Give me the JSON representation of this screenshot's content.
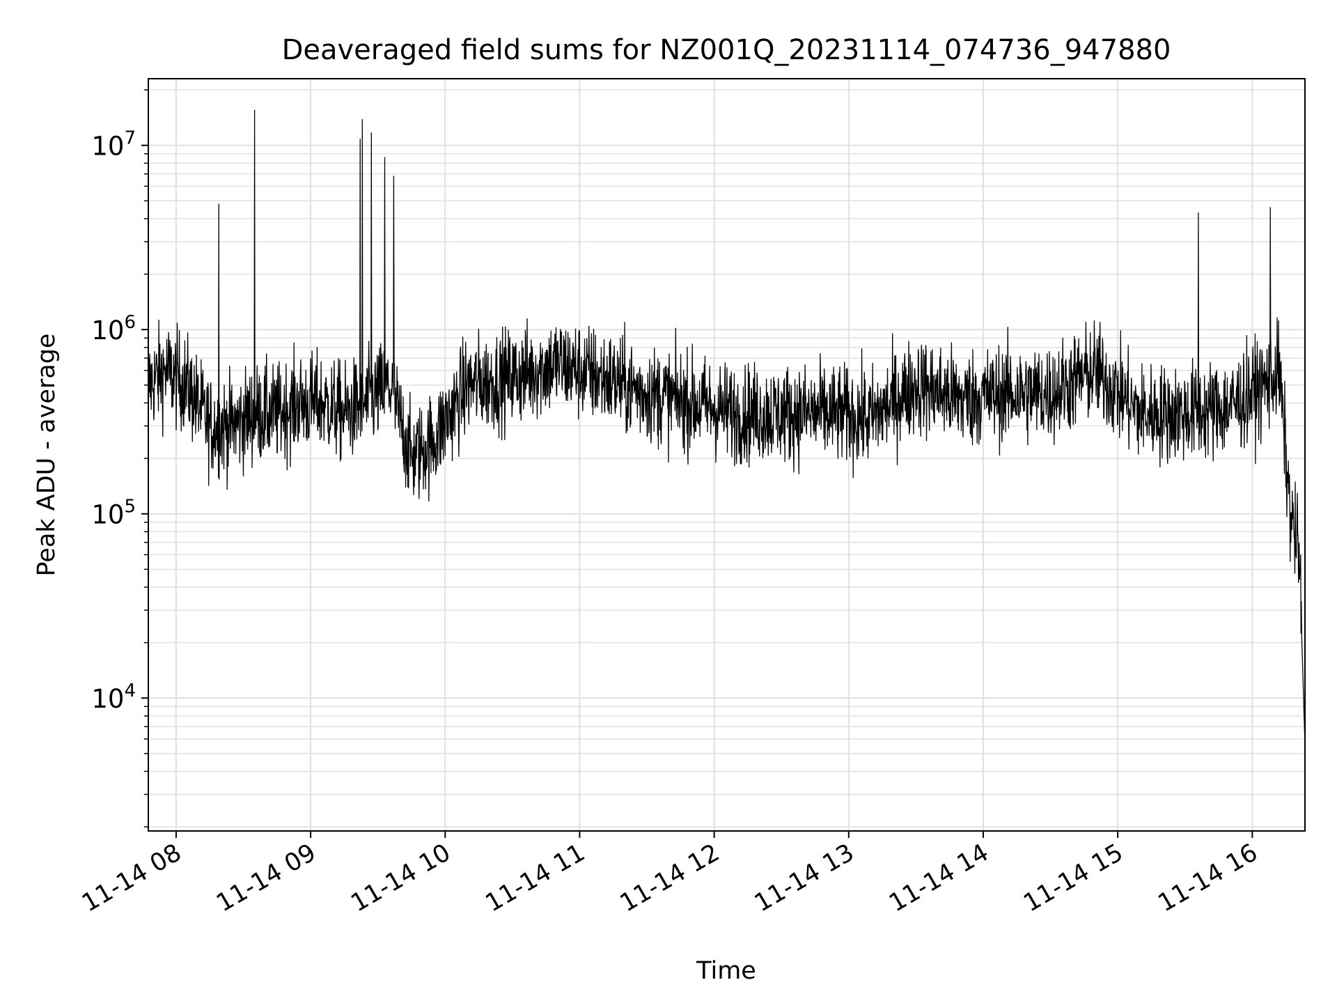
{
  "chart_data": {
    "type": "line",
    "title": "Deaveraged field sums for NZ001Q_20231114_074736_947880",
    "xlabel": "Time",
    "ylabel": "Peak ADU - average",
    "y_scale": "log",
    "ylim": [
      1900,
      23000000
    ],
    "xlim": [
      "2023-11-14 07:47:36",
      "2023-11-14 16:23:30"
    ],
    "grid": true,
    "line_color": "#000000",
    "grid_color": "#e0e0e0",
    "x_ticks": [
      {
        "value": "2023-11-14 08:00",
        "label": "11-14 08"
      },
      {
        "value": "2023-11-14 09:00",
        "label": "11-14 09"
      },
      {
        "value": "2023-11-14 10:00",
        "label": "11-14 10"
      },
      {
        "value": "2023-11-14 11:00",
        "label": "11-14 11"
      },
      {
        "value": "2023-11-14 12:00",
        "label": "11-14 12"
      },
      {
        "value": "2023-11-14 13:00",
        "label": "11-14 13"
      },
      {
        "value": "2023-11-14 14:00",
        "label": "11-14 14"
      },
      {
        "value": "2023-11-14 15:00",
        "label": "11-14 15"
      },
      {
        "value": "2023-11-14 16:00",
        "label": "11-14 16"
      }
    ],
    "y_ticks": [
      {
        "value": 10000,
        "base": "10",
        "exp": "4"
      },
      {
        "value": 100000,
        "base": "10",
        "exp": "5"
      },
      {
        "value": 1000000,
        "base": "10",
        "exp": "6"
      },
      {
        "value": 10000000,
        "base": "10",
        "exp": "7"
      }
    ],
    "x": [
      "2023-11-14 07:47:36",
      "2023-11-14 07:55:00",
      "2023-11-14 08:05:00",
      "2023-11-14 08:15:00",
      "2023-11-14 08:25:00",
      "2023-11-14 08:35:00",
      "2023-11-14 08:45:00",
      "2023-11-14 08:55:00",
      "2023-11-14 09:05:00",
      "2023-11-14 09:15:00",
      "2023-11-14 09:25:00",
      "2023-11-14 09:35:00",
      "2023-11-14 09:45:00",
      "2023-11-14 09:55:00",
      "2023-11-14 10:10:00",
      "2023-11-14 10:30:00",
      "2023-11-14 10:50:00",
      "2023-11-14 11:10:00",
      "2023-11-14 11:30:00",
      "2023-11-14 11:50:00",
      "2023-11-14 12:10:00",
      "2023-11-14 12:30:00",
      "2023-11-14 12:50:00",
      "2023-11-14 13:10:00",
      "2023-11-14 13:30:00",
      "2023-11-14 13:50:00",
      "2023-11-14 14:10:00",
      "2023-11-14 14:30:00",
      "2023-11-14 14:50:00",
      "2023-11-14 15:10:00",
      "2023-11-14 15:30:00",
      "2023-11-14 15:50:00",
      "2023-11-14 16:05:00",
      "2023-11-14 16:12:00",
      "2023-11-14 16:17:00",
      "2023-11-14 16:21:00",
      "2023-11-14 16:23:30"
    ],
    "y": [
      500000,
      600000,
      500000,
      300000,
      300000,
      350000,
      350000,
      400000,
      400000,
      350000,
      400000,
      500000,
      200000,
      250000,
      500000,
      550000,
      650000,
      550000,
      450000,
      400000,
      350000,
      350000,
      350000,
      330000,
      500000,
      420000,
      450000,
      450000,
      600000,
      350000,
      350000,
      380000,
      500000,
      600000,
      100000,
      60000,
      5500
    ],
    "spikes": [
      {
        "x": "2023-11-14 08:19:00",
        "y": 4800000
      },
      {
        "x": "2023-11-14 08:35:00",
        "y": 15500000
      },
      {
        "x": "2023-11-14 09:22:00",
        "y": 10800000
      },
      {
        "x": "2023-11-14 09:23:00",
        "y": 13800000
      },
      {
        "x": "2023-11-14 09:27:00",
        "y": 11700000
      },
      {
        "x": "2023-11-14 09:33:00",
        "y": 8600000
      },
      {
        "x": "2023-11-14 09:37:00",
        "y": 6800000
      },
      {
        "x": "2023-11-14 15:36:00",
        "y": 4300000
      },
      {
        "x": "2023-11-14 16:08:00",
        "y": 4600000
      }
    ]
  }
}
